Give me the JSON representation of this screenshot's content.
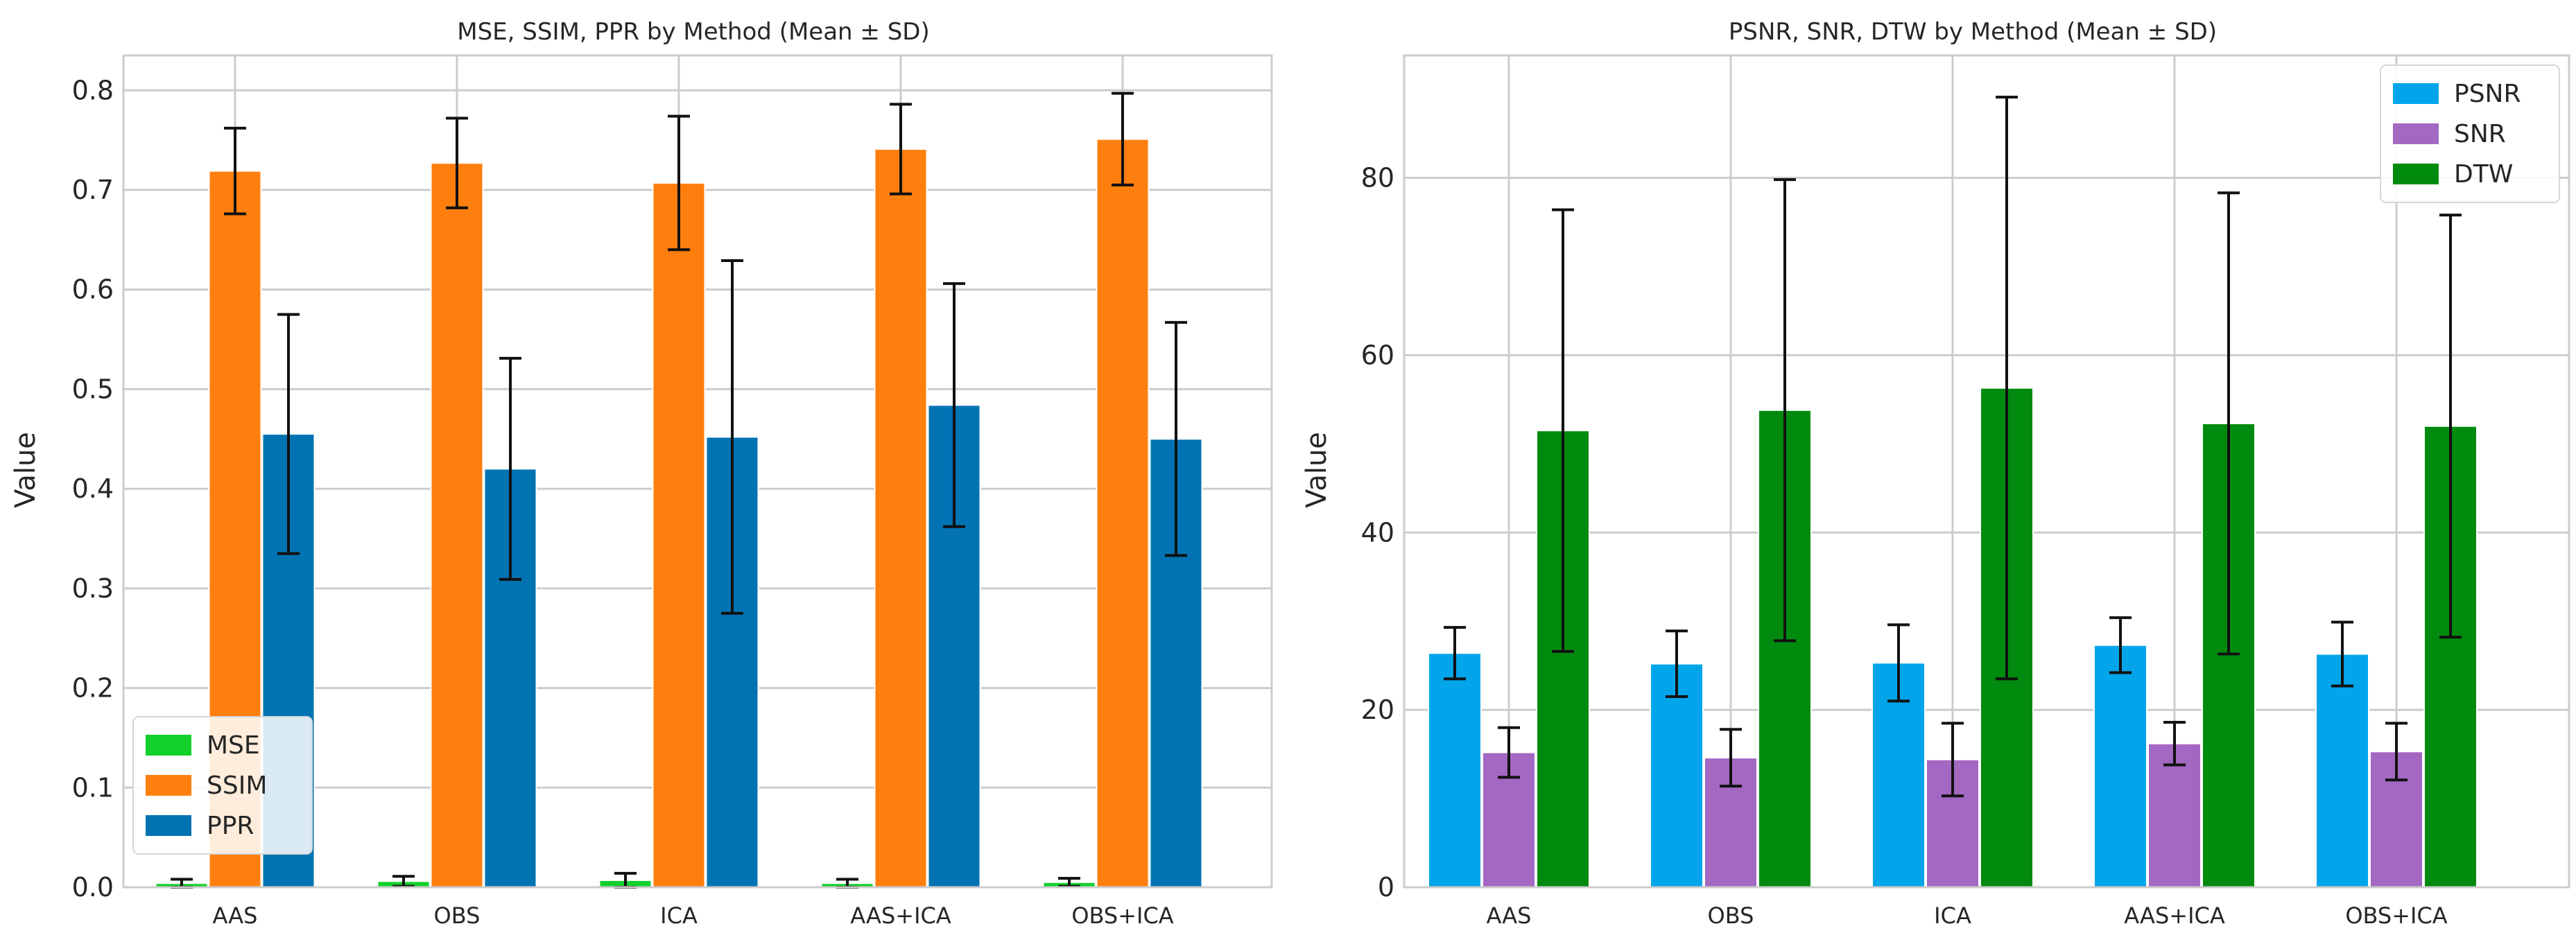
{
  "chart_data": [
    {
      "type": "bar",
      "title": "MSE, SSIM, PPR by Method (Mean ± SD)",
      "xlabel": "",
      "ylabel": "Value",
      "ylim": [
        0,
        0.835
      ],
      "yticks": [
        "0.0",
        "0.1",
        "0.2",
        "0.3",
        "0.4",
        "0.5",
        "0.6",
        "0.7",
        "0.8"
      ],
      "ytick_values": [
        0,
        0.1,
        0.2,
        0.3,
        0.4,
        0.5,
        0.6,
        0.7,
        0.8
      ],
      "categories": [
        "AAS",
        "OBS",
        "ICA",
        "AAS+ICA",
        "OBS+ICA"
      ],
      "grid": true,
      "legend_position": "bottom-left",
      "series": [
        {
          "name": "MSE",
          "color": "#12d12b",
          "values": [
            0.004,
            0.006,
            0.007,
            0.004,
            0.005
          ],
          "sd": [
            0.004,
            0.005,
            0.007,
            0.004,
            0.004
          ]
        },
        {
          "name": "SSIM",
          "color": "#ff7f0e",
          "values": [
            0.719,
            0.727,
            0.707,
            0.741,
            0.751
          ],
          "sd": [
            0.043,
            0.045,
            0.067,
            0.045,
            0.046
          ]
        },
        {
          "name": "PPR",
          "color": "#0173b2",
          "values": [
            0.455,
            0.42,
            0.452,
            0.484,
            0.45
          ],
          "sd": [
            0.12,
            0.111,
            0.177,
            0.122,
            0.117
          ]
        }
      ]
    },
    {
      "type": "bar",
      "title": "PSNR, SNR, DTW by Method (Mean ± SD)",
      "xlabel": "",
      "ylabel": "Value",
      "ylim": [
        0,
        93.8
      ],
      "yticks": [
        "0",
        "20",
        "40",
        "60",
        "80"
      ],
      "ytick_values": [
        0,
        20,
        40,
        60,
        80
      ],
      "categories": [
        "AAS",
        "OBS",
        "ICA",
        "AAS+ICA",
        "OBS+ICA"
      ],
      "grid": true,
      "legend_position": "top-right",
      "series": [
        {
          "name": "PSNR",
          "color": "#02a5e9",
          "values": [
            26.4,
            25.2,
            25.3,
            27.3,
            26.3
          ],
          "sd": [
            2.9,
            3.7,
            4.3,
            3.1,
            3.6
          ]
        },
        {
          "name": "SNR",
          "color": "#a368c2",
          "values": [
            15.2,
            14.6,
            14.4,
            16.2,
            15.3
          ],
          "sd": [
            2.8,
            3.2,
            4.1,
            2.4,
            3.2
          ]
        },
        {
          "name": "DTW",
          "color": "#008b0f",
          "values": [
            51.5,
            53.8,
            56.3,
            52.3,
            52.0
          ],
          "sd": [
            24.9,
            26.0,
            32.8,
            26.0,
            23.8
          ]
        }
      ]
    }
  ]
}
